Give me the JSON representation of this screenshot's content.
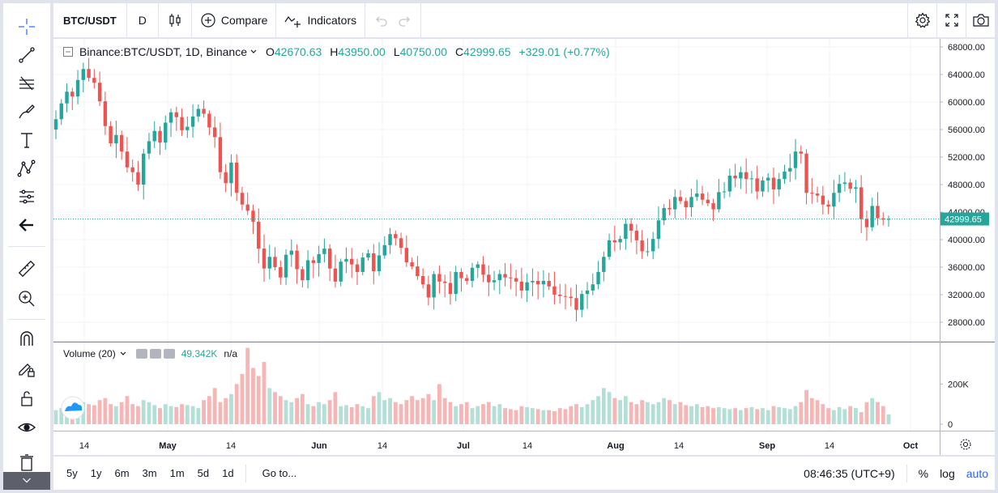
{
  "toolbar": {
    "symbol": "BTC/USDT",
    "interval": "D",
    "compare_label": "Compare",
    "indicators_label": "Indicators"
  },
  "legend": {
    "title": "Binance:BTC/USDT, 1D, Binance",
    "o_label": "O",
    "o_value": "42670.63",
    "h_label": "H",
    "h_value": "43950.00",
    "l_label": "L",
    "l_value": "40750.00",
    "c_label": "C",
    "c_value": "42999.65",
    "change": "+329.01 (+0.77%)"
  },
  "volume_legend": {
    "title": "Volume (20)",
    "value": "49.342K",
    "na": "n/a"
  },
  "price_axis": {
    "ticks": [
      "68000.00",
      "64000.00",
      "60000.00",
      "56000.00",
      "52000.00",
      "48000.00",
      "44000.00",
      "40000.00",
      "36000.00",
      "32000.00",
      "28000.00"
    ],
    "last_price": "42999.65"
  },
  "volume_axis": {
    "ticks": [
      "200K",
      "0"
    ]
  },
  "time_axis": {
    "ticks": [
      "14",
      "May",
      "14",
      "Jun",
      "14",
      "Jul",
      "14",
      "Aug",
      "14",
      "Sep",
      "14",
      "Oct"
    ]
  },
  "bottom": {
    "ranges": [
      "5y",
      "1y",
      "6m",
      "3m",
      "1m",
      "5d",
      "1d"
    ],
    "goto_label": "Go to...",
    "clock": "08:46:35 (UTC+9)",
    "percent_label": "%",
    "log_label": "log",
    "auto_label": "auto"
  },
  "colors": {
    "up": "#26a69a",
    "down": "#ef5350",
    "vol_up": "#b3dfd6",
    "vol_down": "#f5b6b5",
    "grid": "#f0f3fa",
    "price_line": "#26a69a"
  },
  "chart_data": {
    "type": "candlestick",
    "y_range": [
      25000,
      69000
    ],
    "volume_range": [
      0,
      430000
    ],
    "closes": [
      57500,
      59800,
      61500,
      60800,
      63200,
      64800,
      63500,
      62800,
      60100,
      56500,
      54000,
      55200,
      52800,
      50500,
      49800,
      48000,
      52500,
      54300,
      55800,
      54100,
      57000,
      58500,
      57800,
      55900,
      56400,
      57900,
      59000,
      58300,
      56300,
      54900,
      49800,
      48200,
      51200,
      46800,
      45100,
      44200,
      42600,
      38700,
      35800,
      37500,
      36000,
      34500,
      37800,
      38400,
      35700,
      34100,
      37000,
      36600,
      37900,
      38700,
      35800,
      33900,
      36800,
      37200,
      36400,
      35300,
      37400,
      38000,
      35400,
      37700,
      39200,
      40800,
      40200,
      38800,
      36700,
      36100,
      34700,
      33500,
      31600,
      35000,
      33900,
      33700,
      32100,
      35300,
      34400,
      34000,
      35900,
      36400,
      34900,
      33800,
      34100,
      35000,
      34500,
      34400,
      33900,
      32600,
      33800,
      34000,
      33500,
      34000,
      33200,
      32000,
      31800,
      31700,
      31500,
      29800,
      32100,
      32600,
      33500,
      35300,
      37500,
      39900,
      39600,
      40100,
      42300,
      41300,
      39900,
      38300,
      38300,
      40100,
      42800,
      44600,
      44400,
      46200,
      45600,
      44700,
      46200,
      46700,
      45800,
      45300,
      44400,
      46900,
      47000,
      49300,
      48900,
      49800,
      48800,
      48900,
      47000,
      48600,
      49000,
      47300,
      48800,
      49900,
      50400,
      52800,
      52500,
      46800,
      46700,
      46400,
      45100,
      44800,
      46800,
      48100,
      48300,
      47400,
      47600,
      43000,
      41800,
      44900,
      43100,
      42900,
      43000
    ],
    "volumes": [
      70000,
      80000,
      75000,
      60000,
      90000,
      110000,
      100000,
      95000,
      120000,
      130000,
      100000,
      90000,
      110000,
      140000,
      100000,
      90000,
      120000,
      110000,
      95000,
      80000,
      100000,
      90000,
      85000,
      100000,
      95000,
      90000,
      80000,
      120000,
      140000,
      180000,
      110000,
      130000,
      150000,
      200000,
      250000,
      380000,
      280000,
      240000,
      310000,
      180000,
      160000,
      140000,
      120000,
      110000,
      130000,
      150000,
      100000,
      90000,
      110000,
      100000,
      120000,
      160000,
      90000,
      95000,
      85000,
      100000,
      90000,
      80000,
      140000,
      160000,
      120000,
      130000,
      110000,
      100000,
      120000,
      140000,
      120000,
      130000,
      150000,
      120000,
      200000,
      130000,
      110000,
      90000,
      100000,
      110000,
      80000,
      90000,
      100000,
      110000,
      90000,
      100000,
      80000,
      75000,
      70000,
      90000,
      85000,
      80000,
      75000,
      70000,
      70000,
      65000,
      80000,
      75000,
      90000,
      100000,
      85000,
      100000,
      120000,
      140000,
      180000,
      160000,
      130000,
      120000,
      140000,
      110000,
      100000,
      120000,
      110000,
      100000,
      110000,
      130000,
      120000,
      100000,
      110000,
      95000,
      90000,
      100000,
      85000,
      90000,
      80000,
      85000,
      80000,
      75000,
      80000,
      70000,
      80000,
      85000,
      75000,
      80000,
      70000,
      90000,
      85000,
      80000,
      75000,
      90000,
      110000,
      170000,
      130000,
      120000,
      100000,
      80000,
      70000,
      85000,
      75000,
      90000,
      80000,
      60000,
      110000,
      130000,
      110000,
      90000,
      49342
    ]
  }
}
